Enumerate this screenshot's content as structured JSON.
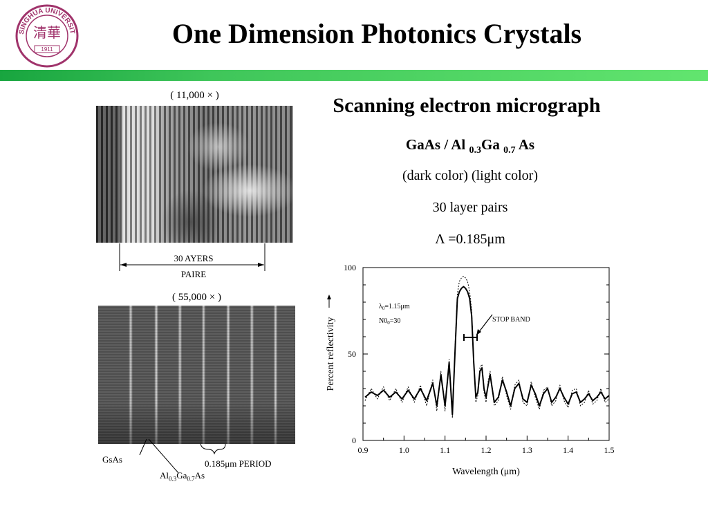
{
  "slide": {
    "title": "One Dimension Photonics Crystals",
    "logo": {
      "text_top": "TSINGHUA UNIVERSITY",
      "year": "1911",
      "color": "#a0336b"
    },
    "accent_bar_color": "#3fc65a"
  },
  "left": {
    "sem1_caption": "( 11,000 × )",
    "scale_label_top": "30 AYERS",
    "scale_label_bottom": "PAIRE",
    "sem2_caption": "( 55,000 × )",
    "label_gaas": "GsAs",
    "label_algaas": "Al0.3Ga0.7As",
    "label_period": "0.185μm PERIOD"
  },
  "right": {
    "heading": "Scanning electron micrograph",
    "material": "GaAs / Al 0.3Ga 0.7 As",
    "colors_note": "(dark color)  (light color)",
    "layers": "30 layer pairs",
    "period": "Λ =0.185μm"
  },
  "chart_data": {
    "type": "line",
    "xlabel": "Wavelength (μm)",
    "ylabel": "Percent reflectivity",
    "xlim": [
      0.9,
      1.5
    ],
    "ylim": [
      0,
      100
    ],
    "xticks": [
      "0.9",
      "1.0",
      "1.1",
      "1.2",
      "1.3",
      "1.4",
      "1.5"
    ],
    "yticks": [
      "0",
      "50",
      "100"
    ],
    "annotations": {
      "lambda0": "λ0=1.15μm",
      "n0": "N00=30",
      "stop_band": "STOP BAND"
    },
    "series": [
      {
        "style": "solid",
        "x": [
          0.905,
          0.92,
          0.935,
          0.95,
          0.965,
          0.98,
          0.995,
          1.01,
          1.025,
          1.04,
          1.055,
          1.07,
          1.08,
          1.09,
          1.1,
          1.11,
          1.118,
          1.125,
          1.13,
          1.135,
          1.14,
          1.145,
          1.15,
          1.155,
          1.16,
          1.165,
          1.17,
          1.175,
          1.18,
          1.185,
          1.19,
          1.195,
          1.2,
          1.205,
          1.21,
          1.22,
          1.23,
          1.24,
          1.25,
          1.26,
          1.27,
          1.28,
          1.29,
          1.3,
          1.31,
          1.32,
          1.33,
          1.34,
          1.35,
          1.36,
          1.37,
          1.38,
          1.39,
          1.4,
          1.41,
          1.42,
          1.43,
          1.44,
          1.45,
          1.46,
          1.47,
          1.48,
          1.49,
          1.5
        ],
        "y": [
          25,
          28,
          26,
          29,
          25,
          28,
          24,
          29,
          24,
          30,
          23,
          33,
          20,
          38,
          20,
          45,
          15,
          55,
          82,
          86,
          88,
          89,
          88,
          86,
          82,
          72,
          45,
          25,
          28,
          40,
          42,
          30,
          25,
          32,
          38,
          22,
          25,
          35,
          28,
          20,
          30,
          33,
          24,
          22,
          32,
          27,
          20,
          27,
          30,
          22,
          25,
          30,
          25,
          21,
          27,
          28,
          22,
          24,
          27,
          23,
          25,
          28,
          24,
          26
        ]
      },
      {
        "style": "dashed",
        "x": [
          0.905,
          0.92,
          0.935,
          0.95,
          0.965,
          0.98,
          0.995,
          1.01,
          1.025,
          1.04,
          1.055,
          1.07,
          1.08,
          1.09,
          1.1,
          1.11,
          1.118,
          1.125,
          1.13,
          1.135,
          1.14,
          1.145,
          1.15,
          1.155,
          1.16,
          1.165,
          1.17,
          1.175,
          1.18,
          1.185,
          1.19,
          1.195,
          1.2,
          1.205,
          1.21,
          1.22,
          1.23,
          1.24,
          1.25,
          1.26,
          1.27,
          1.28,
          1.29,
          1.3,
          1.31,
          1.32,
          1.33,
          1.34,
          1.35,
          1.36,
          1.37,
          1.38,
          1.39,
          1.4,
          1.41,
          1.42,
          1.43,
          1.44,
          1.45,
          1.46,
          1.47,
          1.48,
          1.49,
          1.5
        ],
        "y": [
          23,
          30,
          24,
          31,
          23,
          30,
          22,
          31,
          22,
          32,
          20,
          35,
          17,
          40,
          17,
          47,
          13,
          58,
          85,
          92,
          94,
          95,
          94,
          92,
          86,
          75,
          47,
          22,
          26,
          42,
          44,
          28,
          22,
          34,
          40,
          20,
          23,
          37,
          26,
          18,
          32,
          35,
          22,
          20,
          34,
          25,
          18,
          29,
          31,
          20,
          23,
          32,
          23,
          19,
          29,
          30,
          20,
          22,
          29,
          21,
          23,
          30,
          22,
          24
        ]
      }
    ]
  }
}
